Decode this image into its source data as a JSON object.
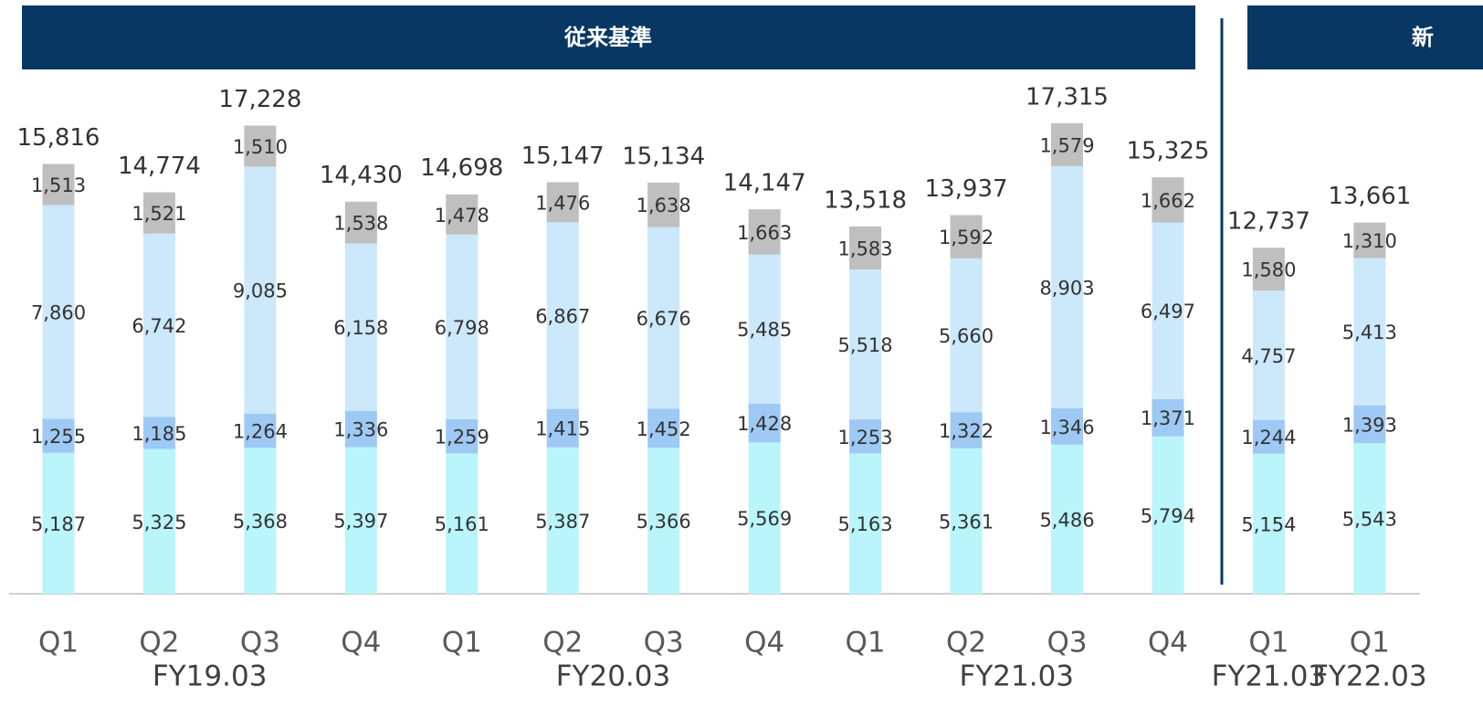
{
  "chart_data": {
    "type": "stacked-bar",
    "sections": [
      {
        "header": "従来基準",
        "groups": [
          "FY19.03",
          "FY19.03",
          "FY19.03",
          "FY19.03",
          "FY20.03",
          "FY20.03",
          "FY20.03",
          "FY20.03",
          "FY21.03",
          "FY21.03",
          "FY21.03",
          "FY21.03"
        ]
      },
      {
        "header": "新",
        "groups": [
          "FY21.03",
          "FY22.03"
        ]
      }
    ],
    "categories": [
      "Q1",
      "Q2",
      "Q3",
      "Q4",
      "Q1",
      "Q2",
      "Q3",
      "Q4",
      "Q1",
      "Q2",
      "Q3",
      "Q4",
      "Q1",
      "Q1"
    ],
    "series": [
      {
        "color": "#b9f5fa",
        "values": [
          5187,
          5325,
          5368,
          5397,
          5161,
          5387,
          5366,
          5569,
          5163,
          5361,
          5486,
          5794,
          5154,
          5543
        ],
        "value_labels": [
          "5,187",
          "5,325",
          "5,368",
          "5,397",
          "5,161",
          "5,387",
          "5,366",
          "5,569",
          "5,163",
          "5,361",
          "5,486",
          "5,794",
          "5,154",
          "5,543"
        ]
      },
      {
        "color": "#9ec9f5",
        "values": [
          1255,
          1185,
          1264,
          1336,
          1259,
          1415,
          1452,
          1428,
          1253,
          1322,
          1346,
          1371,
          1244,
          1393
        ],
        "value_labels": [
          "1,255",
          "1,185",
          "1,264",
          "1,336",
          "1,259",
          "1,415",
          "1,452",
          "1,428",
          "1,253",
          "1,322",
          "1,346",
          "1,371",
          "1,244",
          "1,393"
        ]
      },
      {
        "color": "#cce8fb",
        "values": [
          7860,
          6742,
          9085,
          6158,
          6798,
          6867,
          6676,
          5485,
          5518,
          5660,
          8903,
          6497,
          4757,
          5413
        ],
        "value_labels": [
          "7,860",
          "6,742",
          "9,085",
          "6,158",
          "6,798",
          "6,867",
          "6,676",
          "5,485",
          "5,518",
          "5,660",
          "8,903",
          "6,497",
          "4,757",
          "5,413"
        ]
      },
      {
        "color": "#bfbfbf",
        "values": [
          1513,
          1521,
          1510,
          1538,
          1478,
          1476,
          1638,
          1663,
          1583,
          1592,
          1579,
          1662,
          1580,
          1310
        ],
        "value_labels": [
          "1,513",
          "1,521",
          "1,510",
          "1,538",
          "1,478",
          "1,476",
          "1,638",
          "1,663",
          "1,583",
          "1,592",
          "1,579",
          "1,662",
          "1,580",
          "1,310"
        ]
      }
    ],
    "totals": [
      15816,
      14774,
      17228,
      14430,
      14698,
      15147,
      15134,
      14147,
      13518,
      13937,
      17315,
      15325,
      12737,
      13661
    ],
    "total_labels": [
      "15,816",
      "14,774",
      "17,228",
      "14,430",
      "14,698",
      "15,147",
      "15,134",
      "14,147",
      "13,518",
      "13,937",
      "17,315",
      "15,325",
      "12,737",
      "13,661"
    ]
  }
}
